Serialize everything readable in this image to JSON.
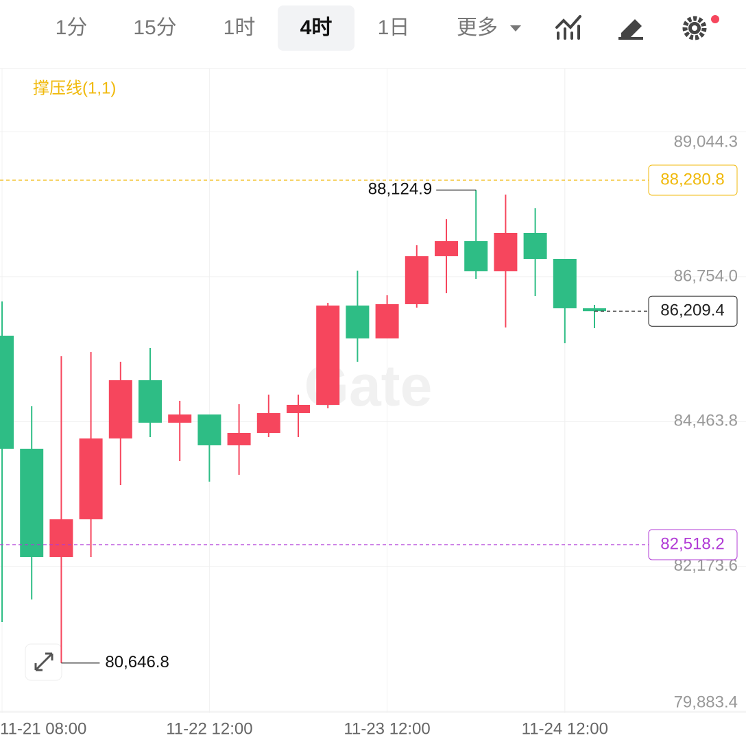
{
  "toolbar": {
    "tabs": [
      "1分",
      "15分",
      "1时",
      "4时",
      "1日",
      "更多"
    ],
    "active": 3
  },
  "chart_data": {
    "type": "candlestick",
    "indicator": "撑压线(1,1)",
    "watermark": "Gate",
    "categories": [
      "11-21 08:00",
      null,
      null,
      null,
      null,
      null,
      null,
      "11-22 12:00",
      null,
      null,
      null,
      null,
      null,
      "11-23 12:00",
      null,
      null,
      null,
      null,
      null,
      "11-24 12:00",
      null
    ],
    "open": [
      85821.9,
      84034.7,
      82323.2,
      82919.0,
      84197.1,
      85117.9,
      84446.3,
      84576.3,
      84088.8,
      84283.8,
      84597.9,
      84727.9,
      86298.5,
      85778.6,
      86320.2,
      87078.4,
      87316.8,
      86840.1,
      87446.7,
      87035.1,
      86255.2
    ],
    "high": [
      86363.5,
      84706.2,
      85497.0,
      85562.0,
      85410.3,
      85627.0,
      84792.9,
      84576.3,
      84738.7,
      84890.4,
      84890.4,
      86341.9,
      86851.0,
      86461.0,
      87251.8,
      87663.4,
      88124.9,
      88053.3,
      87836.7,
      87035.1,
      86309.4
    ],
    "low": [
      81294.2,
      81651.6,
      80646.8,
      82323.2,
      83460.6,
      84218.8,
      83839.7,
      83514.7,
      83623.0,
      84218.8,
      84218.8,
      84673.7,
      85410.3,
      85778.6,
      86266.0,
      86493.5,
      86721.0,
      85951.9,
      86450.2,
      85702.8,
      85941.1
    ],
    "close": [
      84034.7,
      82323.2,
      82919.0,
      84197.1,
      85117.9,
      84446.3,
      84576.3,
      84088.8,
      84283.8,
      84597.9,
      84727.9,
      86298.5,
      85778.6,
      86320.2,
      87078.4,
      87316.8,
      86840.1,
      87446.7,
      87035.1,
      86255.2,
      86209.4
    ],
    "up_color": "#f6465d",
    "down_color": "#2ebd85",
    "ylim": [
      79864,
      90046
    ],
    "yticks": [
      {
        "value": 79883.4,
        "label": "79,883.4"
      },
      {
        "value": 82173.6,
        "label": "82,173.6"
      },
      {
        "value": 84463.8,
        "label": "84,463.8"
      },
      {
        "value": 86754.0,
        "label": "86,754.0"
      },
      {
        "value": 89044.3,
        "label": "89,044.3"
      }
    ],
    "grid": true,
    "reference_lines": [
      {
        "value": 88280.8,
        "label": "88,280.8",
        "color": "#f0b90b"
      },
      {
        "value": 82518.2,
        "label": "82,518.2",
        "color": "#b13bd6"
      },
      {
        "value": 86209.4,
        "label": "86,209.4",
        "color": "#222222"
      }
    ],
    "annotations": [
      {
        "value": 88124.9,
        "label": "88,124.9"
      },
      {
        "value": 80646.8,
        "label": "80,646.8"
      }
    ]
  }
}
